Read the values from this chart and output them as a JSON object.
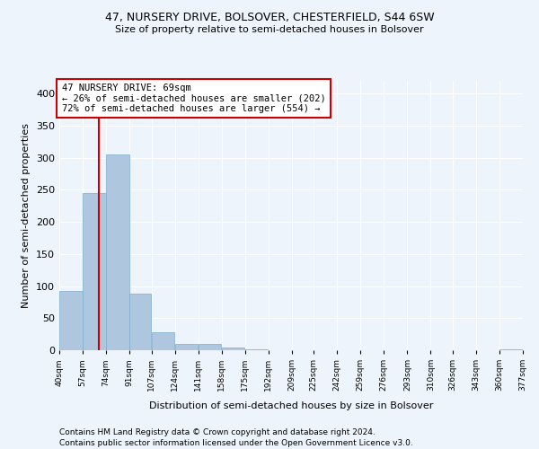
{
  "title": "47, NURSERY DRIVE, BOLSOVER, CHESTERFIELD, S44 6SW",
  "subtitle": "Size of property relative to semi-detached houses in Bolsover",
  "xlabel": "Distribution of semi-detached houses by size in Bolsover",
  "ylabel": "Number of semi-detached properties",
  "footnote1": "Contains HM Land Registry data © Crown copyright and database right 2024.",
  "footnote2": "Contains public sector information licensed under the Open Government Licence v3.0.",
  "annotation_title": "47 NURSERY DRIVE: 69sqm",
  "annotation_line1": "← 26% of semi-detached houses are smaller (202)",
  "annotation_line2": "72% of semi-detached houses are larger (554) →",
  "property_size": 69,
  "bar_edges": [
    40,
    57,
    74,
    91,
    107,
    124,
    141,
    158,
    175,
    192,
    209,
    225,
    242,
    259,
    276,
    293,
    310,
    326,
    343,
    360,
    377
  ],
  "bar_heights": [
    93,
    245,
    305,
    88,
    28,
    10,
    10,
    4,
    2,
    0,
    0,
    0,
    0,
    0,
    0,
    0,
    0,
    0,
    0,
    2
  ],
  "bar_color": "#aec6de",
  "bar_edge_color": "#7aaed0",
  "vline_color": "#cc0000",
  "vline_x": 69,
  "annotation_box_color": "#cc0000",
  "ylim": [
    0,
    420
  ],
  "yticks": [
    0,
    50,
    100,
    150,
    200,
    250,
    300,
    350,
    400
  ],
  "bg_color": "#eef4fb",
  "grid_color": "#ffffff",
  "title_fontsize": 9,
  "subtitle_fontsize": 8,
  "ylabel_fontsize": 8,
  "xlabel_fontsize": 8,
  "footnote_fontsize": 6.5
}
